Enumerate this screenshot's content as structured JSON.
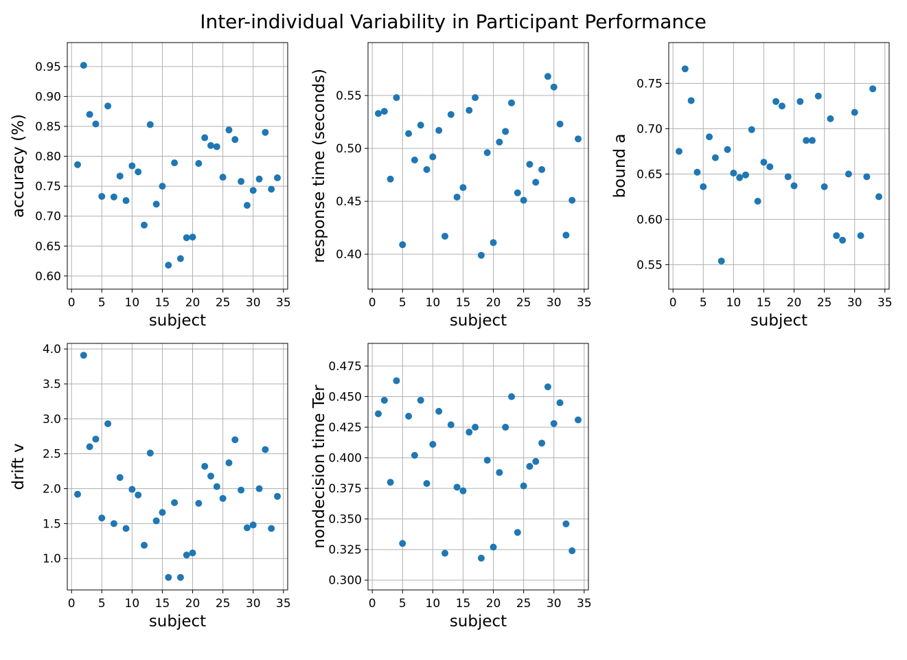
{
  "figure": {
    "title": "Inter-individual Variability in Participant Performance"
  },
  "chart_data": [
    {
      "type": "scatter",
      "xlabel": "subject",
      "ylabel": "accuracy (%)",
      "xlim": [
        -0.7,
        35.7
      ],
      "ylim": [
        0.578,
        0.99
      ],
      "grid": true,
      "xticks": [
        0,
        5,
        10,
        15,
        20,
        25,
        30,
        35
      ],
      "xtick_labels": [
        "0",
        "5",
        "10",
        "15",
        "20",
        "25",
        "30",
        "35"
      ],
      "yticks": [
        0.6,
        0.65,
        0.7,
        0.75,
        0.8,
        0.85,
        0.9,
        0.95
      ],
      "ytick_labels": [
        "0.60",
        "0.65",
        "0.70",
        "0.75",
        "0.80",
        "0.85",
        "0.90",
        "0.95"
      ],
      "color": "#1f77b4",
      "x": [
        1,
        2,
        3,
        4,
        5,
        6,
        7,
        8,
        9,
        10,
        11,
        12,
        13,
        14,
        15,
        16,
        17,
        18,
        19,
        20,
        21,
        22,
        23,
        24,
        25,
        26,
        27,
        28,
        29,
        30,
        31,
        32,
        33,
        34
      ],
      "y": [
        0.786,
        0.952,
        0.87,
        0.854,
        0.733,
        0.884,
        0.732,
        0.767,
        0.726,
        0.784,
        0.774,
        0.685,
        0.853,
        0.72,
        0.75,
        0.618,
        0.789,
        0.629,
        0.664,
        0.665,
        0.788,
        0.831,
        0.818,
        0.816,
        0.765,
        0.844,
        0.828,
        0.758,
        0.718,
        0.743,
        0.762,
        0.84,
        0.745,
        0.764
      ]
    },
    {
      "type": "scatter",
      "xlabel": "subject",
      "ylabel": "response time (seconds)",
      "xlim": [
        -0.7,
        35.7
      ],
      "ylim": [
        0.367,
        0.6
      ],
      "grid": true,
      "xticks": [
        0,
        5,
        10,
        15,
        20,
        25,
        30,
        35
      ],
      "xtick_labels": [
        "0",
        "5",
        "10",
        "15",
        "20",
        "25",
        "30",
        "35"
      ],
      "yticks": [
        0.4,
        0.45,
        0.5,
        0.55
      ],
      "ytick_labels": [
        "0.40",
        "0.45",
        "0.50",
        "0.55"
      ],
      "color": "#1f77b4",
      "x": [
        1,
        2,
        3,
        4,
        5,
        6,
        7,
        8,
        9,
        10,
        11,
        12,
        13,
        14,
        15,
        16,
        17,
        18,
        19,
        20,
        21,
        22,
        23,
        24,
        25,
        26,
        27,
        28,
        29,
        30,
        31,
        32,
        33,
        34
      ],
      "y": [
        0.533,
        0.535,
        0.471,
        0.548,
        0.409,
        0.514,
        0.489,
        0.522,
        0.48,
        0.492,
        0.517,
        0.417,
        0.532,
        0.454,
        0.463,
        0.536,
        0.548,
        0.399,
        0.496,
        0.411,
        0.506,
        0.516,
        0.543,
        0.458,
        0.451,
        0.485,
        0.468,
        0.48,
        0.568,
        0.558,
        0.523,
        0.418,
        0.451,
        0.509
      ]
    },
    {
      "type": "scatter",
      "xlabel": "subject",
      "ylabel": "bound a",
      "xlim": [
        -0.7,
        35.7
      ],
      "ylim": [
        0.523,
        0.795
      ],
      "grid": true,
      "xticks": [
        0,
        5,
        10,
        15,
        20,
        25,
        30,
        35
      ],
      "xtick_labels": [
        "0",
        "5",
        "10",
        "15",
        "20",
        "25",
        "30",
        "35"
      ],
      "yticks": [
        0.55,
        0.6,
        0.65,
        0.7,
        0.75
      ],
      "ytick_labels": [
        "0.55",
        "0.60",
        "0.65",
        "0.70",
        "0.75"
      ],
      "color": "#1f77b4",
      "x": [
        1,
        2,
        3,
        4,
        5,
        6,
        7,
        8,
        9,
        10,
        11,
        12,
        13,
        14,
        15,
        16,
        17,
        18,
        19,
        20,
        21,
        22,
        23,
        24,
        25,
        26,
        27,
        28,
        29,
        30,
        31,
        32,
        33,
        34
      ],
      "y": [
        0.675,
        0.766,
        0.731,
        0.652,
        0.636,
        0.691,
        0.668,
        0.554,
        0.677,
        0.651,
        0.646,
        0.649,
        0.699,
        0.62,
        0.663,
        0.658,
        0.73,
        0.725,
        0.647,
        0.637,
        0.73,
        0.687,
        0.687,
        0.736,
        0.636,
        0.711,
        0.582,
        0.577,
        0.65,
        0.718,
        0.582,
        0.647,
        0.744,
        0.625
      ]
    },
    {
      "type": "scatter",
      "xlabel": "subject",
      "ylabel": "drift v",
      "xlim": [
        -0.7,
        35.7
      ],
      "ylim": [
        0.55,
        4.08
      ],
      "grid": true,
      "xticks": [
        0,
        5,
        10,
        15,
        20,
        25,
        30,
        35
      ],
      "xtick_labels": [
        "0",
        "5",
        "10",
        "15",
        "20",
        "25",
        "30",
        "35"
      ],
      "yticks": [
        1.0,
        1.5,
        2.0,
        2.5,
        3.0,
        3.5,
        4.0
      ],
      "ytick_labels": [
        "1.0",
        "1.5",
        "2.0",
        "2.5",
        "3.0",
        "3.5",
        "4.0"
      ],
      "color": "#1f77b4",
      "x": [
        1,
        2,
        3,
        4,
        5,
        6,
        7,
        8,
        9,
        10,
        11,
        12,
        13,
        14,
        15,
        16,
        17,
        18,
        19,
        20,
        21,
        22,
        23,
        24,
        25,
        26,
        27,
        28,
        29,
        30,
        31,
        32,
        33,
        34
      ],
      "y": [
        1.92,
        3.91,
        2.6,
        2.71,
        1.58,
        2.93,
        1.5,
        2.16,
        1.43,
        1.99,
        1.91,
        1.19,
        2.51,
        1.54,
        1.66,
        0.73,
        1.8,
        0.73,
        1.05,
        1.08,
        1.79,
        2.32,
        2.18,
        2.03,
        1.86,
        2.37,
        2.7,
        1.98,
        1.44,
        1.48,
        2.0,
        2.56,
        1.43,
        1.89
      ]
    },
    {
      "type": "scatter",
      "xlabel": "subject",
      "ylabel": "nondecision time Ter",
      "xlim": [
        -0.7,
        35.7
      ],
      "ylim": [
        0.292,
        0.4935
      ],
      "grid": true,
      "xticks": [
        0,
        5,
        10,
        15,
        20,
        25,
        30,
        35
      ],
      "xtick_labels": [
        "0",
        "5",
        "10",
        "15",
        "20",
        "25",
        "30",
        "35"
      ],
      "yticks": [
        0.3,
        0.325,
        0.35,
        0.375,
        0.4,
        0.425,
        0.45,
        0.475
      ],
      "ytick_labels": [
        "0.300",
        "0.325",
        "0.350",
        "0.375",
        "0.400",
        "0.425",
        "0.450",
        "0.475"
      ],
      "color": "#1f77b4",
      "x": [
        1,
        2,
        3,
        4,
        5,
        6,
        7,
        8,
        9,
        10,
        11,
        12,
        13,
        14,
        15,
        16,
        17,
        18,
        19,
        20,
        21,
        22,
        23,
        24,
        25,
        26,
        27,
        28,
        29,
        30,
        31,
        32,
        33,
        34
      ],
      "y": [
        0.436,
        0.447,
        0.38,
        0.463,
        0.33,
        0.434,
        0.402,
        0.447,
        0.379,
        0.411,
        0.438,
        0.322,
        0.427,
        0.376,
        0.373,
        0.421,
        0.425,
        0.318,
        0.398,
        0.327,
        0.388,
        0.425,
        0.45,
        0.339,
        0.377,
        0.393,
        0.397,
        0.412,
        0.458,
        0.428,
        0.445,
        0.346,
        0.324,
        0.431
      ]
    }
  ]
}
